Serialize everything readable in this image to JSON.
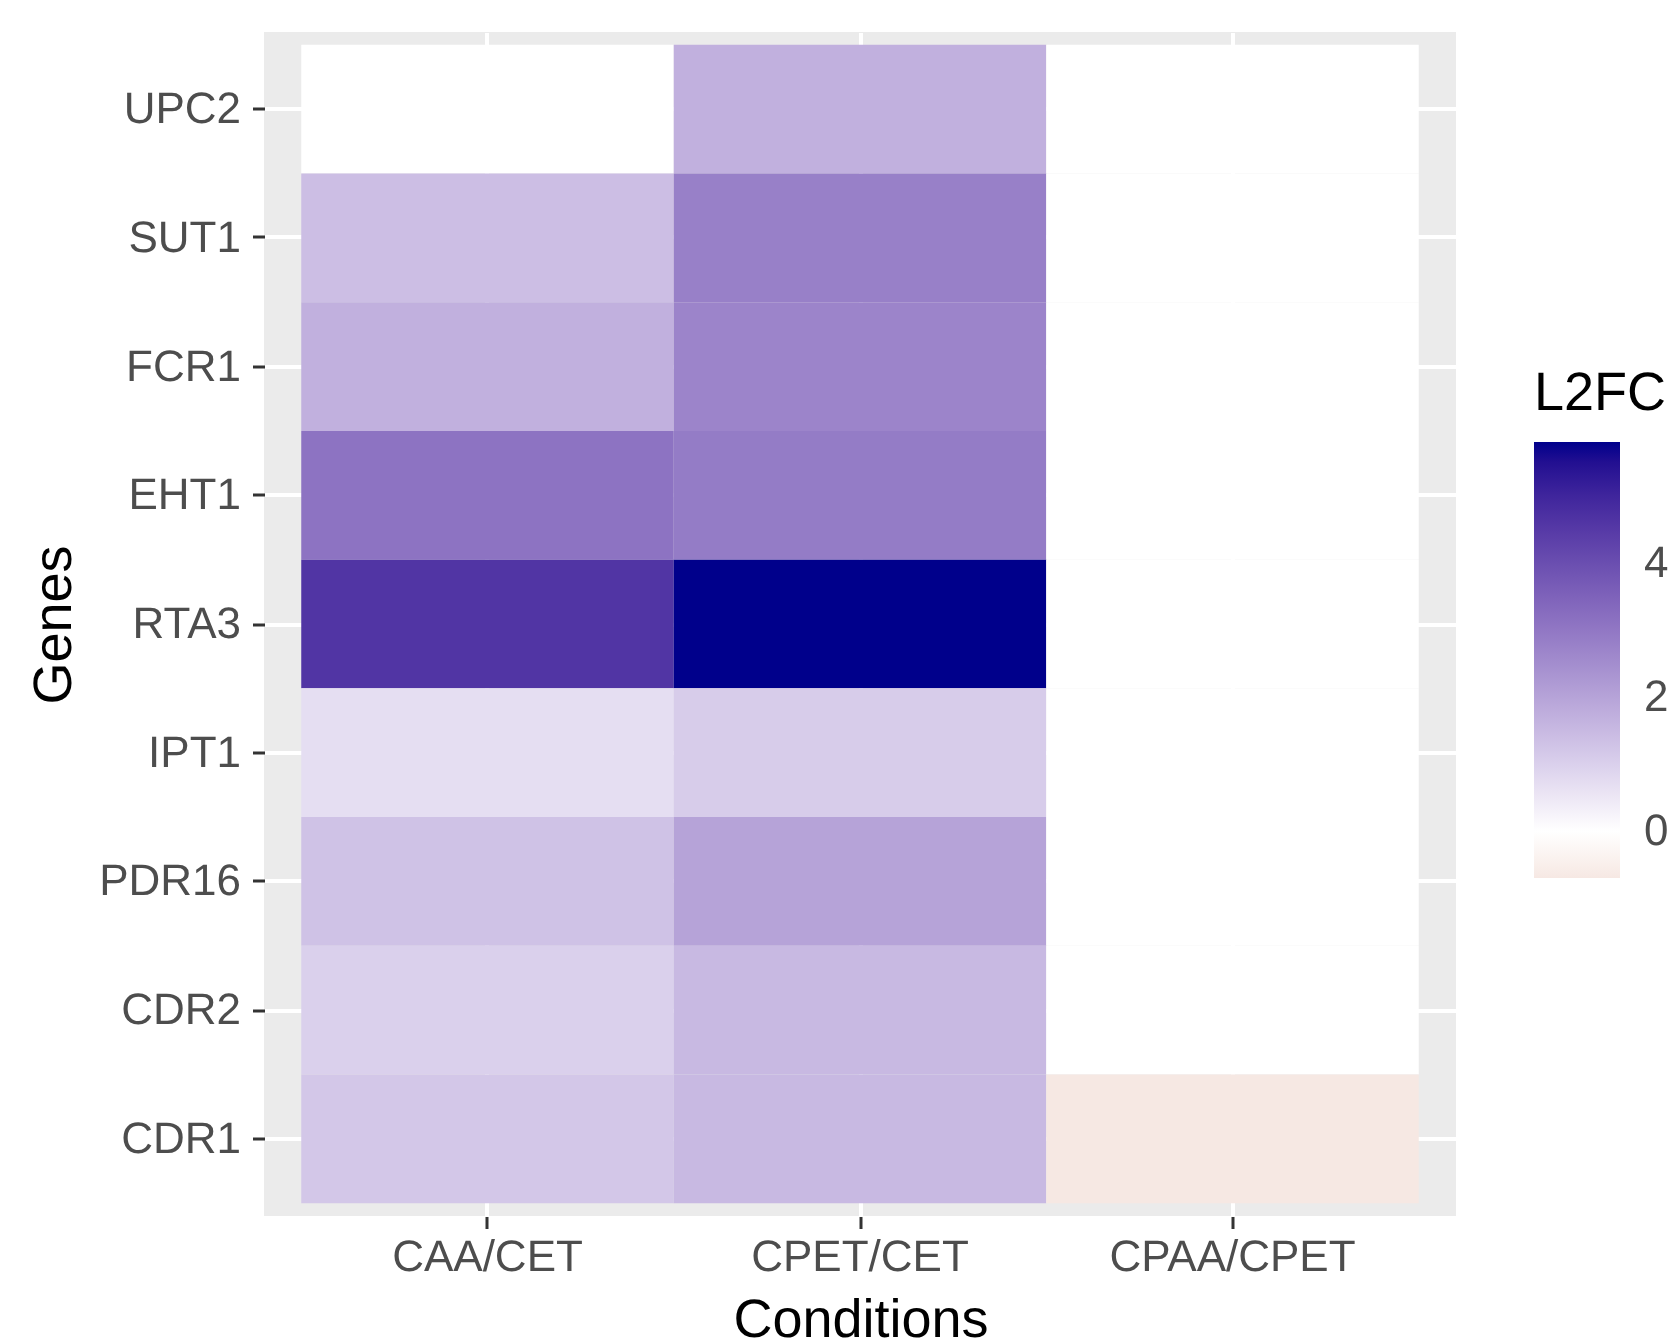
{
  "chart_data": {
    "type": "heatmap",
    "xlabel": "Conditions",
    "ylabel": "Genes",
    "clabel": "L2FC",
    "categories": [
      "CAA/CET",
      "CPET/CET",
      "CPAA/CPET"
    ],
    "y_categories": [
      "UPC2",
      "SUT1",
      "FCR1",
      "EHT1",
      "RTA3",
      "IPT1",
      "PDR16",
      "CDR2",
      "CDR1"
    ],
    "cells": [
      [
        0,
        1.7,
        0
      ],
      [
        1.4,
        2.8,
        0
      ],
      [
        1.7,
        2.7,
        0
      ],
      [
        3.1,
        2.9,
        0
      ],
      [
        4.6,
        5.8,
        0
      ],
      [
        0.7,
        1.1,
        0
      ],
      [
        1.3,
        2,
        0
      ],
      [
        1,
        1.5,
        0
      ],
      [
        1.2,
        1.5,
        -0.7
      ]
    ],
    "clim": [
      -0.7,
      5.8
    ],
    "cticks": [
      0,
      2,
      4
    ],
    "grid": true
  }
}
